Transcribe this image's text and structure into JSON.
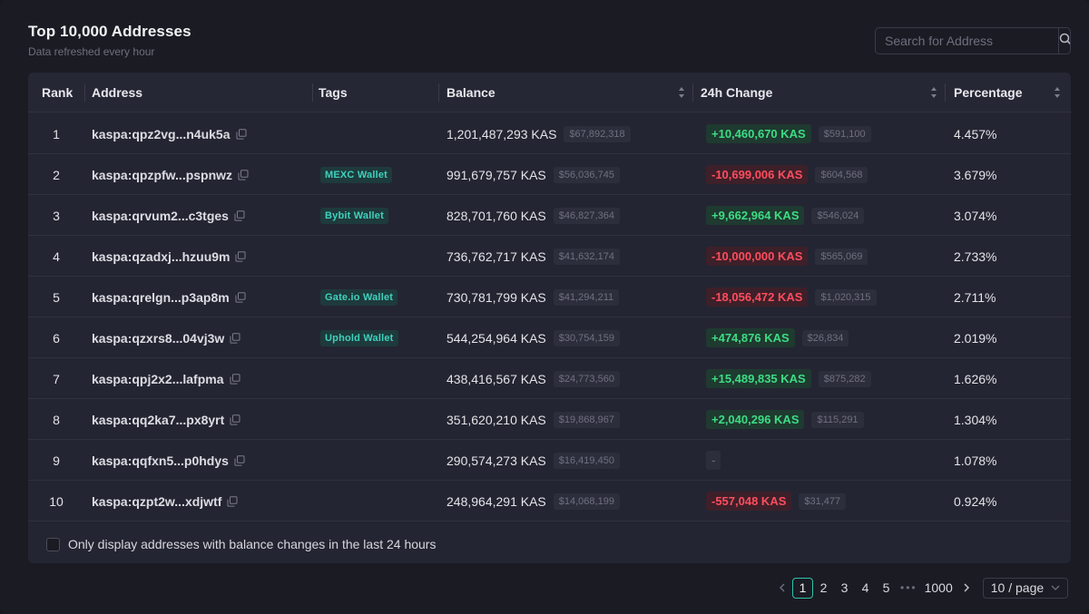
{
  "header": {
    "title": "Top 10,000 Addresses",
    "subtitle": "Data refreshed every hour"
  },
  "search": {
    "placeholder": "Search for Address",
    "value": "",
    "icon": "search-icon"
  },
  "table": {
    "columns": {
      "rank": "Rank",
      "address": "Address",
      "tags": "Tags",
      "balance": "Balance",
      "change": "24h Change",
      "percentage": "Percentage"
    },
    "rows": [
      {
        "rank": "1",
        "address": "kaspa:qpz2vg...n4uk5a",
        "tag": "",
        "balance": "1,201,487,293 KAS",
        "balance_usd": "$67,892,318",
        "change": "+10,460,670 KAS",
        "change_type": "pos",
        "change_usd": "$591,100",
        "pct": "4.457%"
      },
      {
        "rank": "2",
        "address": "kaspa:qpzpfw...pspnwz",
        "tag": "MEXC Wallet",
        "balance": "991,679,757 KAS",
        "balance_usd": "$56,036,745",
        "change": "-10,699,006 KAS",
        "change_type": "neg",
        "change_usd": "$604,568",
        "pct": "3.679%"
      },
      {
        "rank": "3",
        "address": "kaspa:qrvum2...c3tges",
        "tag": "Bybit Wallet",
        "balance": "828,701,760 KAS",
        "balance_usd": "$46,827,364",
        "change": "+9,662,964 KAS",
        "change_type": "pos",
        "change_usd": "$546,024",
        "pct": "3.074%"
      },
      {
        "rank": "4",
        "address": "kaspa:qzadxj...hzuu9m",
        "tag": "",
        "balance": "736,762,717 KAS",
        "balance_usd": "$41,632,174",
        "change": "-10,000,000 KAS",
        "change_type": "neg",
        "change_usd": "$565,069",
        "pct": "2.733%"
      },
      {
        "rank": "5",
        "address": "kaspa:qrelgn...p3ap8m",
        "tag": "Gate.io Wallet",
        "balance": "730,781,799 KAS",
        "balance_usd": "$41,294,211",
        "change": "-18,056,472 KAS",
        "change_type": "neg",
        "change_usd": "$1,020,315",
        "pct": "2.711%"
      },
      {
        "rank": "6",
        "address": "kaspa:qzxrs8...04vj3w",
        "tag": "Uphold Wallet",
        "balance": "544,254,964 KAS",
        "balance_usd": "$30,754,159",
        "change": "+474,876 KAS",
        "change_type": "pos",
        "change_usd": "$26,834",
        "pct": "2.019%"
      },
      {
        "rank": "7",
        "address": "kaspa:qpj2x2...lafpma",
        "tag": "",
        "balance": "438,416,567 KAS",
        "balance_usd": "$24,773,560",
        "change": "+15,489,835 KAS",
        "change_type": "pos",
        "change_usd": "$875,282",
        "pct": "1.626%"
      },
      {
        "rank": "8",
        "address": "kaspa:qq2ka7...px8yrt",
        "tag": "",
        "balance": "351,620,210 KAS",
        "balance_usd": "$19,868,967",
        "change": "+2,040,296 KAS",
        "change_type": "pos",
        "change_usd": "$115,291",
        "pct": "1.304%"
      },
      {
        "rank": "9",
        "address": "kaspa:qqfxn5...p0hdys",
        "tag": "",
        "balance": "290,574,273 KAS",
        "balance_usd": "$16,419,450",
        "change": "-",
        "change_type": "none",
        "change_usd": "",
        "pct": "1.078%"
      },
      {
        "rank": "10",
        "address": "kaspa:qzpt2w...xdjwtf",
        "tag": "",
        "balance": "248,964,291 KAS",
        "balance_usd": "$14,068,199",
        "change": "-557,048 KAS",
        "change_type": "neg",
        "change_usd": "$31,477",
        "pct": "0.924%"
      }
    ]
  },
  "filter": {
    "label": "Only display addresses with balance changes in the last 24 hours",
    "checked": false
  },
  "pagination": {
    "pages": [
      "1",
      "2",
      "3",
      "4",
      "5"
    ],
    "ellipsis": "•••",
    "last_page": "1000",
    "current": "1",
    "page_size": "10 / page"
  },
  "colors": {
    "positive": "#3ddc84",
    "negative": "#ff4d5e",
    "tag": "#3fd1bd",
    "accent": "#2fc3a8"
  }
}
